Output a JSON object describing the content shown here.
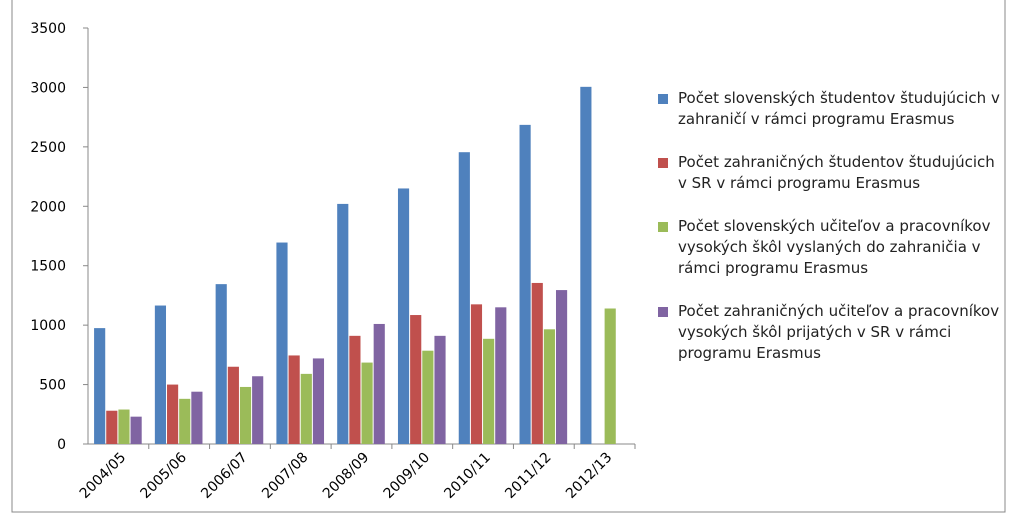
{
  "chart_data": {
    "type": "bar",
    "categories": [
      "2004/05",
      "2005/06",
      "2006/07",
      "2007/08",
      "2008/09",
      "2009/10",
      "2010/11",
      "2011/12",
      "2012/13"
    ],
    "series": [
      {
        "name": "Počet slovenských študentov študujúcich v zahraničí v rámci programu Erasmus",
        "color": "#4f81bd",
        "values": [
          975,
          1165,
          1345,
          1695,
          2020,
          2150,
          2455,
          2685,
          3005
        ]
      },
      {
        "name": "Počet zahraničných študentov študujúcich v SR v rámci programu Erasmus",
        "color": "#c0504d",
        "values": [
          280,
          500,
          650,
          745,
          910,
          1085,
          1175,
          1355,
          null
        ]
      },
      {
        "name": "Počet slovenských učiteľov a pracovníkov vysokých škôl vyslaných do zahraničia v rámci programu Erasmus",
        "color": "#9bbb59",
        "values": [
          290,
          380,
          480,
          590,
          685,
          785,
          885,
          965,
          1140
        ]
      },
      {
        "name": "Počet zahraničných učiteľov a pracovníkov vysokých škôl prijatých v SR v rámci programu Erasmus",
        "color": "#8064a2",
        "values": [
          230,
          440,
          570,
          720,
          1010,
          910,
          1150,
          1295,
          null
        ]
      }
    ],
    "ylim": [
      0,
      3500
    ],
    "yticks": [
      0,
      500,
      1000,
      1500,
      2000,
      2500,
      3000,
      3500
    ],
    "grid": false,
    "legend": "right"
  }
}
